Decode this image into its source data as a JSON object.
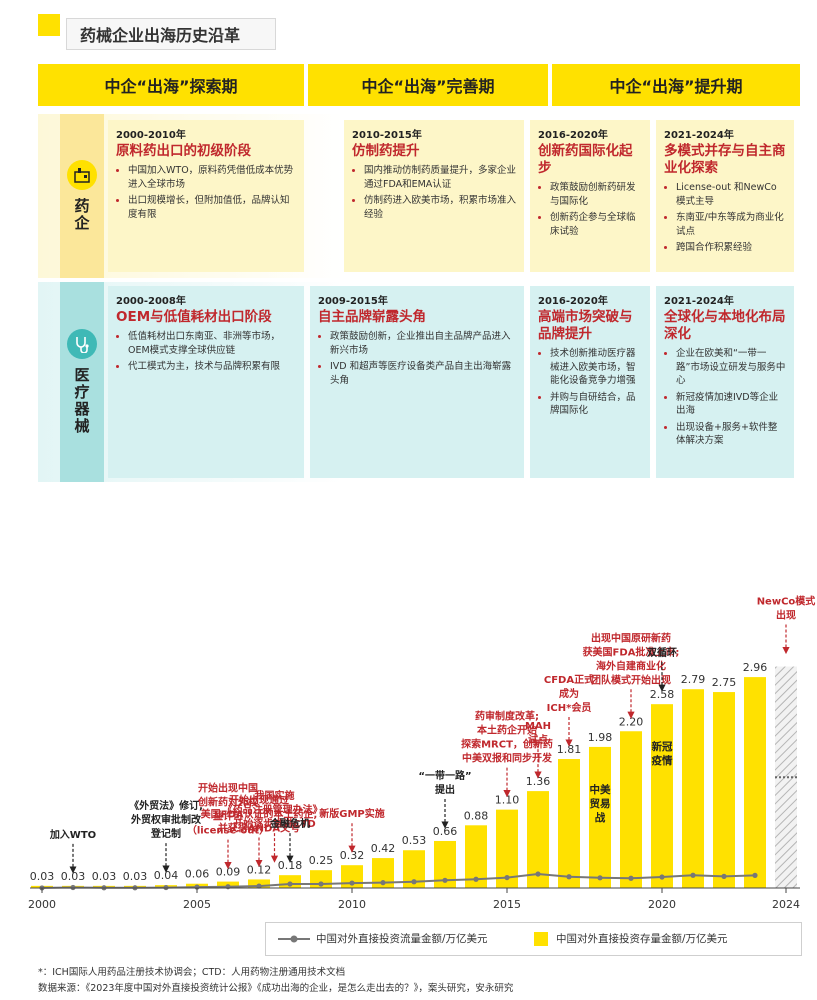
{
  "title": "药械企业出海历史沿革",
  "periods": [
    "中企“出海”探索期",
    "中企“出海”完善期",
    "中企“出海”提升期"
  ],
  "rows": {
    "pharma": {
      "label": "药企",
      "cards": [
        {
          "year": "2000-2010年",
          "head": "原料药出口的初级阶段",
          "bullets": [
            "中国加入WTO，原料药凭借低成本优势进入全球市场",
            "出口规模增长，但附加值低，品牌认知度有限"
          ]
        },
        {
          "year": "2010-2015年",
          "head": "仿制药提升",
          "bullets": [
            "国内推动仿制药质量提升，多家企业通过FDA和EMA认证",
            "仿制药进入欧美市场，积累市场准入经验"
          ]
        },
        {
          "year": "2016-2020年",
          "head": "创新药国际化起步",
          "bullets": [
            "政策鼓励创新药研发与国际化",
            "创新药企参与全球临床试验"
          ]
        },
        {
          "year": "2021-2024年",
          "head": "多模式并存与自主商业化探索",
          "bullets": [
            "License-out 和NewCo 模式主导",
            "东南亚/中东等成为商业化试点",
            "跨国合作积累经验"
          ]
        }
      ]
    },
    "device": {
      "label": "医疗器械",
      "cards": [
        {
          "year": "2000-2008年",
          "head": "OEM与低值耗材出口阶段",
          "bullets": [
            "低值耗材出口东南亚、非洲等市场，OEM模式支撑全球供应链",
            "代工模式为主，技术与品牌积累有限"
          ]
        },
        {
          "year": "2009-2015年",
          "head": "自主品牌崭露头角",
          "bullets": [
            "政策鼓励创新，企业推出自主品牌产品进入新兴市场",
            "IVD 和超声等医疗设备类产品自主出海崭露头角"
          ]
        },
        {
          "year": "2016-2020年",
          "head": "高端市场突破与品牌提升",
          "bullets": [
            "技术创新推动医疗器械进入欧美市场，智能化设备竞争力增强",
            "并购与自研结合，品牌国际化"
          ]
        },
        {
          "year": "2021-2024年",
          "head": "全球化与本地化布局深化",
          "bullets": [
            "企业在欧美和“一带一路”市场设立研发与服务中心",
            "新冠疫情加速IVD等企业出海",
            "出现设备+服务+软件整体解决方案"
          ]
        }
      ]
    }
  },
  "chart_data": {
    "type": "bar",
    "x": [
      2000,
      2001,
      2002,
      2003,
      2004,
      2005,
      2006,
      2007,
      2008,
      2009,
      2010,
      2011,
      2012,
      2013,
      2014,
      2015,
      2016,
      2017,
      2018,
      2019,
      2020,
      2021,
      2022,
      2023,
      2024
    ],
    "series": [
      {
        "name": "中国对外直接投资存量金额/万亿美元",
        "kind": "bar",
        "values": [
          0.03,
          0.03,
          0.03,
          0.03,
          0.04,
          0.06,
          0.09,
          0.12,
          0.18,
          0.25,
          0.32,
          0.42,
          0.53,
          0.66,
          0.88,
          1.1,
          1.36,
          1.81,
          1.98,
          2.2,
          2.58,
          2.79,
          2.75,
          2.96,
          null
        ]
      },
      {
        "name": "中国对外直接投资流量金额/万亿美元",
        "kind": "line",
        "values": [
          0.001,
          0.007,
          0.003,
          0.003,
          0.006,
          0.012,
          0.018,
          0.027,
          0.056,
          0.056,
          0.069,
          0.075,
          0.088,
          0.108,
          0.123,
          0.146,
          0.196,
          0.158,
          0.143,
          0.137,
          0.154,
          0.179,
          0.163,
          0.177,
          null
        ]
      }
    ],
    "bar_labels": [
      "0.03",
      "0.03",
      "0.03",
      "0.03",
      "0.04",
      "0.06",
      "0.09",
      "0.12",
      "0.18",
      "0.25",
      "0.32",
      "0.42",
      "0.53",
      "0.66",
      "0.88",
      "1.10",
      "1.36",
      "1.81",
      "1.98",
      "2.20",
      "2.58",
      "2.79",
      "2.75",
      "2.96",
      ""
    ],
    "xticks": [
      "2000",
      "2005",
      "2010",
      "2015",
      "2020",
      "2024"
    ],
    "ylim": [
      0,
      3.2
    ],
    "forecast_year": 2024,
    "inside_labels": [
      {
        "year": 2018,
        "text": [
          "中美",
          "贸易",
          "战"
        ]
      },
      {
        "year": 2020,
        "text": [
          "新冠",
          "疫情"
        ]
      }
    ],
    "annotations": [
      {
        "year": 2001,
        "text": [
          "加入WTO"
        ],
        "color": "#222",
        "style": "dashed"
      },
      {
        "year": 2004,
        "text": [
          "《外贸法》修订,",
          "外贸权审批制改",
          "登记制"
        ],
        "color": "#222",
        "style": "dashed"
      },
      {
        "year": 2006,
        "text": [
          "开始出现中国",
          "创新药对外权",
          "益许可",
          "（license-out）"
        ],
        "color": "#c0282d",
        "style": "dashed"
      },
      {
        "year": 2007,
        "text": [
          "开始出现通过",
          "美国FDA认证的本土药企,",
          "并获得ANDA文号"
        ],
        "color": "#c0282d",
        "style": "dashed"
      },
      {
        "year": 2007.5,
        "text": [
          "我国实施",
          "《药品注册管理办法》,",
          "开始逐步推进CTD"
        ],
        "color": "#c0282d",
        "style": "dashed"
      },
      {
        "year": 2008,
        "text": [
          "金融危机"
        ],
        "color": "#222",
        "style": "dashed"
      },
      {
        "year": 2010,
        "text": [
          "新版GMP实施"
        ],
        "color": "#c0282d",
        "style": "dashed"
      },
      {
        "year": 2013,
        "text": [
          "“一带一路”",
          "提出"
        ],
        "color": "#222",
        "style": "dashed"
      },
      {
        "year": 2015,
        "text": [
          "药审制度改革;",
          "本土药企开始",
          "探索MRCT，创新药",
          "中美双报和同步开发"
        ],
        "color": "#c0282d",
        "style": "dashed"
      },
      {
        "year": 2016,
        "text": [
          "MAH",
          "试点"
        ],
        "color": "#c0282d",
        "style": "dashed"
      },
      {
        "year": 2017,
        "text": [
          "CFDA正式",
          "成为",
          "ICH*会员"
        ],
        "color": "#c0282d",
        "style": "dashed"
      },
      {
        "year": 2019,
        "text": [
          "出现中国原研新药",
          "获美国FDA批准上市;",
          "海外自建商业化",
          "团队模式开始出现"
        ],
        "color": "#c0282d",
        "style": "dashed"
      },
      {
        "year": 2020,
        "text": [
          "双循环"
        ],
        "color": "#222",
        "style": "dashed"
      },
      {
        "year": 2024,
        "text": [
          "NewCo模式",
          "出现"
        ],
        "color": "#c0282d",
        "style": "dashed"
      }
    ]
  },
  "legend": {
    "line": "中国对外直接投资流量金额/万亿美元",
    "bar": "中国对外直接投资存量金额/万亿美元"
  },
  "colors": {
    "yellow": "#ffe100",
    "red": "#c0282d",
    "teal": "#3fb9b6",
    "grey": "#777777"
  },
  "footnote": "*：ICH国际人用药品注册技术协调会；CTD：人用药物注册通用技术文档",
  "source": "数据来源：《2023年度中国对外直接投资统计公报》《成功出海的企业，是怎么走出去的？》，案头研究，安永研究"
}
